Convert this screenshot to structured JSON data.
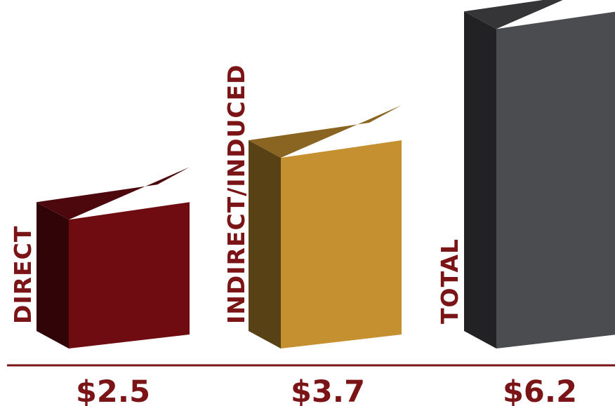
{
  "chart_data": {
    "type": "bar",
    "style": "3d",
    "categories": [
      "DIRECT",
      "INDIRECT/INDUCED",
      "TOTAL"
    ],
    "values": [
      2.5,
      3.7,
      6.2
    ],
    "value_labels": [
      "$2.5",
      "$3.7",
      "$6.2"
    ],
    "colors": [
      "#6e0c12",
      "#c59030",
      "#4b4c50"
    ],
    "label_color": "#7a1416",
    "axis_color": "#7a1416",
    "title": "",
    "xlabel": "",
    "ylabel": "",
    "grid": false,
    "legend": "none"
  }
}
